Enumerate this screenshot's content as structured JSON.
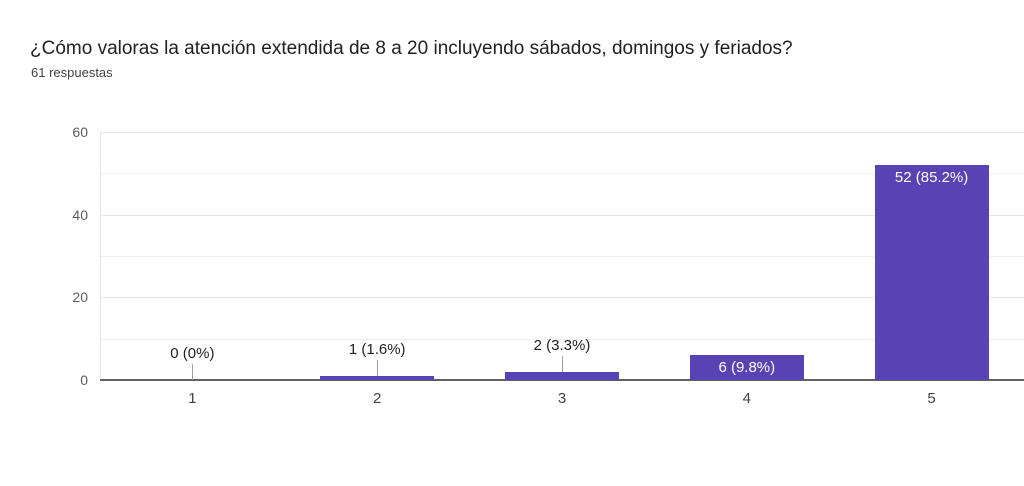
{
  "header": {
    "title": "¿Cómo valoras la atención extendida de 8 a 20 incluyendo sábados, domingos y feriados?",
    "subtitle": "61 respuestas"
  },
  "chart_data": {
    "type": "bar",
    "title": "¿Cómo valoras la atención extendida de 8 a 20 incluyendo sábados, domingos y feriados?",
    "subtitle": "61 respuestas",
    "categories": [
      "1",
      "2",
      "3",
      "4",
      "5"
    ],
    "values": [
      0,
      1,
      2,
      6,
      52
    ],
    "value_labels": [
      "0 (0%)",
      "1 (1.6%)",
      "2 (3.3%)",
      "6 (9.8%)",
      "52 (85.2%)"
    ],
    "label_placement": [
      "above",
      "above",
      "above",
      "inside",
      "inside"
    ],
    "total_responses": 61,
    "xlabel": "",
    "ylabel": "",
    "ylim": [
      0,
      60
    ],
    "yticks": [
      0,
      20,
      40,
      60
    ],
    "minor_gridlines": [
      10,
      30,
      50
    ],
    "grid": true,
    "legend": false,
    "colors": {
      "bar": "#5743b3",
      "major_gridline": "#e6e6e6",
      "minor_gridline": "#f1f1f1",
      "axis_line": "#616161",
      "leader_line": "#9e9e9e",
      "label_outside": "#212121",
      "label_inside": "#ffffff",
      "y_tick_label": "#5c5c5c",
      "x_tick_label": "#424242",
      "title": "#212121",
      "subtitle": "#424242"
    }
  }
}
